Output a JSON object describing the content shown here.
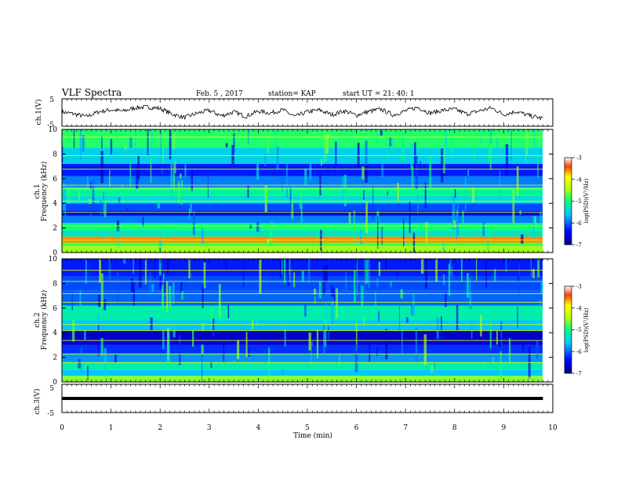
{
  "header": {
    "title": "VLF Spectra",
    "date": "Feb. 5 , 2017",
    "station": "station= KAP",
    "start": "start UT = 21: 40: 1"
  },
  "chart_data": [
    {
      "type": "line",
      "panel": "ch1",
      "ylabel": "ch.1(V)",
      "ylim": [
        -5,
        5
      ],
      "yticks": [
        "5",
        "-5"
      ],
      "xlim": [
        0,
        10
      ],
      "description_series": "waveform",
      "x": [
        0,
        0.25,
        0.5,
        0.75,
        1,
        1.25,
        1.5,
        1.75,
        2,
        2.25,
        2.5,
        2.75,
        3,
        3.25,
        3.5,
        3.75,
        4,
        4.25,
        4.5,
        4.75,
        5,
        5.25,
        5.5,
        5.75,
        6,
        6.25,
        6.5,
        6.75,
        7,
        7.25,
        7.5,
        7.75,
        8,
        8.25,
        8.5,
        8.75,
        9,
        9.25,
        9.5,
        9.75
      ],
      "y": [
        0.2,
        -0.5,
        -1.5,
        0.3,
        1.0,
        0.5,
        1.8,
        2.0,
        1.5,
        -0.6,
        -1.8,
        -0.3,
        0.8,
        -1.2,
        0.2,
        -1.4,
        0.5,
        -0.2,
        1.0,
        -1.5,
        0.3,
        0.9,
        -0.8,
        0.6,
        -1.0,
        0.4,
        1.2,
        -0.9,
        0.6,
        1.9,
        -0.2,
        0.8,
        1.2,
        -0.5,
        0.6,
        1.7,
        -0.7,
        0.4,
        -1.0,
        -2.0
      ]
    },
    {
      "type": "heatmap",
      "panel": "ch1-spectrogram",
      "ylabel_line1": "ch.1",
      "ylabel_line2": "Frequency (kHz)",
      "ylim": [
        0,
        10
      ],
      "yticks": [
        "0",
        "2",
        "4",
        "6",
        "8",
        "10"
      ],
      "xlim": [
        0,
        10
      ],
      "colorbar": {
        "label": "log(PSD)(V²/Hz)",
        "range": [
          -7,
          -3
        ],
        "ticks": [
          "-3",
          "-4",
          "-5",
          "-6",
          "-7"
        ]
      },
      "bands": [
        {
          "f0": 0,
          "f1": 0.4,
          "v": -4.5
        },
        {
          "f0": 0.4,
          "f1": 0.8,
          "v": -4.8
        },
        {
          "f0": 0.8,
          "f1": 1.3,
          "v": -3.6
        },
        {
          "f0": 1.3,
          "f1": 1.8,
          "v": -5.3
        },
        {
          "f0": 1.8,
          "f1": 2.4,
          "v": -5.0
        },
        {
          "f0": 2.4,
          "f1": 3.0,
          "v": -5.9
        },
        {
          "f0": 3.0,
          "f1": 3.4,
          "v": -6.5
        },
        {
          "f0": 3.4,
          "f1": 4.0,
          "v": -6.1
        },
        {
          "f0": 4.0,
          "f1": 4.6,
          "v": -5.4
        },
        {
          "f0": 4.6,
          "f1": 5.3,
          "v": -5.1
        },
        {
          "f0": 5.3,
          "f1": 6.2,
          "v": -5.9
        },
        {
          "f0": 6.2,
          "f1": 7.2,
          "v": -6.3
        },
        {
          "f0": 7.2,
          "f1": 8.5,
          "v": -5.5
        },
        {
          "f0": 8.5,
          "f1": 10,
          "v": -4.9
        }
      ],
      "lines_khz": [
        0.5,
        1.05,
        2.2,
        3.3,
        4.2,
        5.2,
        5.5,
        6.8,
        7.9,
        9.4
      ]
    },
    {
      "type": "heatmap",
      "panel": "ch2-spectrogram",
      "ylabel_line1": "ch.2",
      "ylabel_line2": "Frequency (kHz)",
      "ylim": [
        0,
        10
      ],
      "yticks": [
        "0",
        "2",
        "4",
        "6",
        "8",
        "10"
      ],
      "xlim": [
        0,
        10
      ],
      "colorbar": {
        "label": "log(PSD)(V²/Hz)",
        "range": [
          -7,
          -3
        ],
        "ticks": [
          "-3",
          "-4",
          "-5",
          "-6",
          "-7"
        ]
      },
      "bands": [
        {
          "f0": 0,
          "f1": 0.5,
          "v": -4.6
        },
        {
          "f0": 0.5,
          "f1": 1.0,
          "v": -5.6
        },
        {
          "f0": 1.0,
          "f1": 1.6,
          "v": -5.2
        },
        {
          "f0": 1.6,
          "f1": 2.3,
          "v": -5.8
        },
        {
          "f0": 2.3,
          "f1": 3.0,
          "v": -6.2
        },
        {
          "f0": 3.0,
          "f1": 3.6,
          "v": -6.6
        },
        {
          "f0": 3.6,
          "f1": 4.2,
          "v": -6.7
        },
        {
          "f0": 4.2,
          "f1": 5.0,
          "v": -5.6
        },
        {
          "f0": 5.0,
          "f1": 6.2,
          "v": -5.2
        },
        {
          "f0": 6.2,
          "f1": 7.4,
          "v": -6.0
        },
        {
          "f0": 7.4,
          "f1": 8.6,
          "v": -6.1
        },
        {
          "f0": 8.6,
          "f1": 10,
          "v": -6.3
        }
      ],
      "lines_khz": [
        0.4,
        1.6,
        2.3,
        3.4,
        4.2,
        4.7,
        6.5,
        7.2,
        8.2,
        9.1
      ]
    },
    {
      "type": "line",
      "panel": "ch3",
      "ylabel": "ch.3(V)",
      "ylim": [
        -5,
        5
      ],
      "yticks": [
        "5",
        "-5"
      ],
      "xlim": [
        0,
        10
      ],
      "x": [
        0,
        9.8
      ],
      "y": [
        0,
        0
      ]
    }
  ],
  "xaxis": {
    "label": "Time (min)",
    "ticks": [
      "0",
      "1",
      "2",
      "3",
      "4",
      "5",
      "6",
      "7",
      "8",
      "9",
      "10"
    ]
  }
}
